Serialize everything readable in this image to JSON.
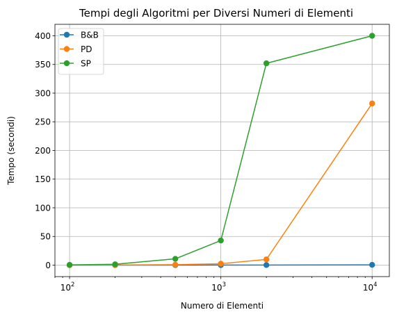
{
  "chart_data": {
    "type": "line",
    "title": "Tempi degli Algoritmi per Diversi Numeri di Elementi",
    "xlabel": "Numero di Elementi",
    "ylabel": "Tempo (secondi)",
    "xscale": "log",
    "xlim": [
      80,
      13000
    ],
    "ylim": [
      -20,
      420
    ],
    "grid": true,
    "legend_position": "top-left",
    "x": [
      100,
      200,
      500,
      1000,
      2000,
      10000
    ],
    "x_ticks": [
      {
        "value": 100,
        "base": "10",
        "exp": "2"
      },
      {
        "value": 1000,
        "base": "10",
        "exp": "3"
      },
      {
        "value": 10000,
        "base": "10",
        "exp": "4"
      }
    ],
    "y_ticks": [
      0,
      50,
      100,
      150,
      200,
      250,
      300,
      350,
      400
    ],
    "series": [
      {
        "name": "B&B",
        "color": "#1f77b4",
        "values": [
          0.01,
          0.02,
          0.05,
          0.1,
          0.2,
          0.5
        ]
      },
      {
        "name": "PD",
        "color": "#ff7f0e",
        "values": [
          0.1,
          0.3,
          0.8,
          2.5,
          10,
          282
        ]
      },
      {
        "name": "SP",
        "color": "#2ca02c",
        "values": [
          0.5,
          1.5,
          11,
          43,
          352,
          400
        ]
      }
    ]
  }
}
